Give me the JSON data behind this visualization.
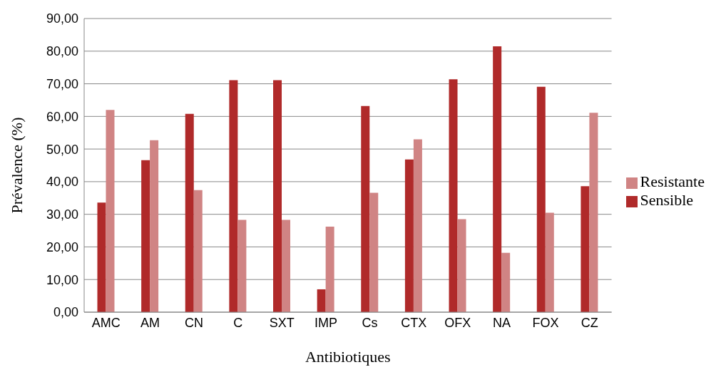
{
  "chart_data": {
    "type": "bar",
    "xlabel": "Antibiotiques",
    "ylabel": "Prévalence (%)",
    "categories": [
      "AMC",
      "AM",
      "CN",
      "C",
      "SXT",
      "IMP",
      "Cs",
      "CTX",
      "OFX",
      "NA",
      "FOX",
      "CZ"
    ],
    "series": [
      {
        "name": "Sensible",
        "color": "#b02a2a",
        "values": [
          33.6,
          46.6,
          60.8,
          71.1,
          71.1,
          7.0,
          63.2,
          46.8,
          71.4,
          81.5,
          69.1,
          38.6
        ]
      },
      {
        "name": "Resistante",
        "color": "#d08484",
        "values": [
          62.0,
          52.7,
          37.4,
          28.3,
          28.3,
          26.2,
          36.6,
          53.0,
          28.5,
          18.2,
          30.5,
          61.1
        ]
      }
    ],
    "ylim": [
      0,
      90
    ],
    "yticks": [
      {
        "value": 0,
        "label": "0,00"
      },
      {
        "value": 10,
        "label": "10,00"
      },
      {
        "value": 20,
        "label": "20,00"
      },
      {
        "value": 30,
        "label": "30,00"
      },
      {
        "value": 40,
        "label": "40,00"
      },
      {
        "value": 50,
        "label": "50,00"
      },
      {
        "value": 60,
        "label": "60,00"
      },
      {
        "value": 70,
        "label": "70,00"
      },
      {
        "value": 80,
        "label": "80,00"
      },
      {
        "value": 90,
        "label": "90,00"
      }
    ],
    "grid": "y",
    "legend": "right"
  }
}
